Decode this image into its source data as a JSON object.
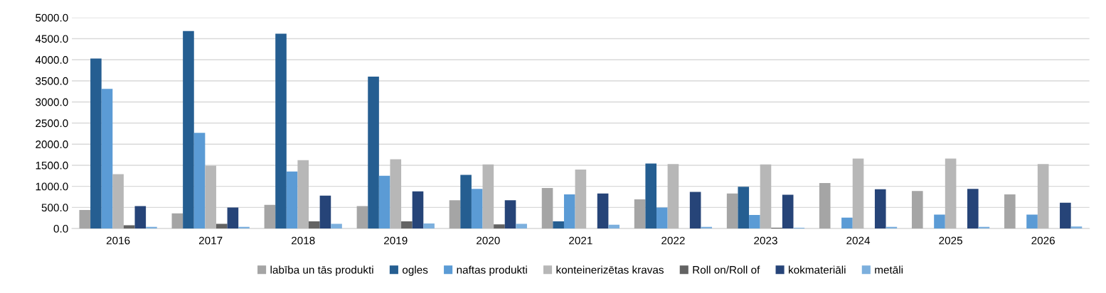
{
  "chart_data": {
    "type": "bar",
    "categories": [
      "2016",
      "2017",
      "2018",
      "2019",
      "2020",
      "2021",
      "2022",
      "2023",
      "2024",
      "2025",
      "2026"
    ],
    "series": [
      {
        "name": "labība un tās produkti",
        "color": "#a5a5a5",
        "values": [
          440,
          360,
          560,
          530,
          670,
          960,
          690,
          830,
          1080,
          890,
          810
        ]
      },
      {
        "name": "ogles",
        "color": "#255e91",
        "values": [
          4030,
          4680,
          4620,
          3600,
          1270,
          170,
          1540,
          990,
          0,
          0,
          0
        ]
      },
      {
        "name": "naftas produkti",
        "color": "#5b9bd5",
        "values": [
          3310,
          2270,
          1350,
          1250,
          940,
          810,
          500,
          320,
          260,
          330,
          330
        ]
      },
      {
        "name": "konteinerizētas kravas",
        "color": "#b7b7b7",
        "values": [
          1290,
          1490,
          1620,
          1640,
          1520,
          1400,
          1530,
          1520,
          1660,
          1660,
          1530
        ]
      },
      {
        "name": "Roll on/Roll of",
        "color": "#636363",
        "values": [
          80,
          110,
          170,
          170,
          100,
          0,
          0,
          20,
          0,
          0,
          0
        ]
      },
      {
        "name": "kokmateriāli",
        "color": "#264478",
        "values": [
          530,
          500,
          780,
          880,
          670,
          830,
          870,
          800,
          930,
          940,
          610
        ]
      },
      {
        "name": "metāli",
        "color": "#7cafdd",
        "values": [
          40,
          40,
          110,
          120,
          110,
          90,
          40,
          20,
          40,
          40,
          50
        ]
      }
    ],
    "ylim": [
      0,
      5000
    ],
    "yticks": [
      {
        "value": 0,
        "label": "0.0"
      },
      {
        "value": 500,
        "label": "500.0"
      },
      {
        "value": 1000,
        "label": "1000.0"
      },
      {
        "value": 1500,
        "label": "1500.0"
      },
      {
        "value": 2000,
        "label": "2000.0"
      },
      {
        "value": 2500,
        "label": "2500.0"
      },
      {
        "value": 3000,
        "label": "3000.0"
      },
      {
        "value": 3500,
        "label": "3500.0"
      },
      {
        "value": 4000,
        "label": "4000.0"
      },
      {
        "value": 4500,
        "label": "4500.0"
      },
      {
        "value": 5000,
        "label": "5000.0"
      }
    ],
    "grid": "y",
    "legend": "bottom"
  }
}
